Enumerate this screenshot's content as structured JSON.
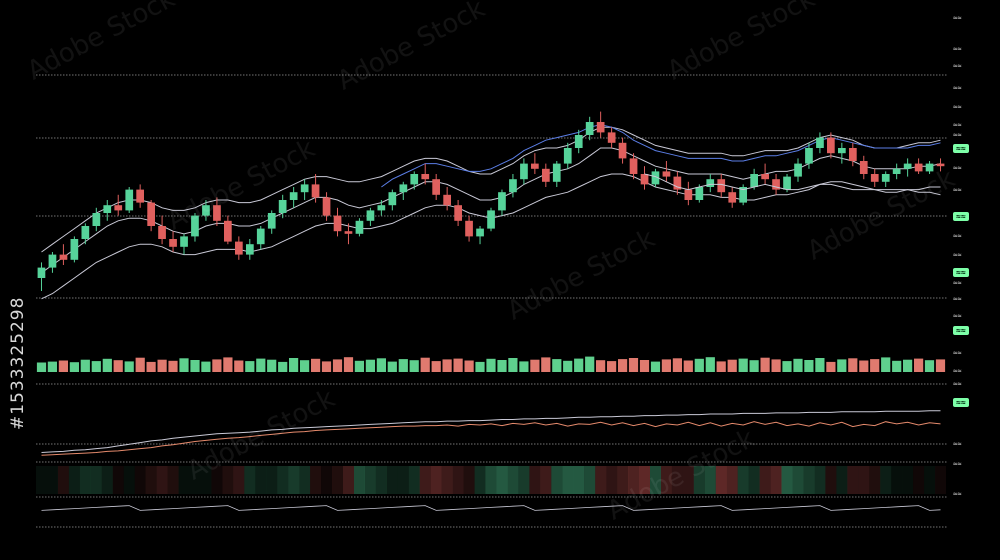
{
  "watermark": {
    "brand": "Adobe Stock",
    "image_id": "#1533325298"
  },
  "price_labels": [
    {
      "text": "≈≈",
      "highlight": false
    },
    {
      "text": "≈≈",
      "highlight": false
    },
    {
      "text": "≈≈",
      "highlight": false
    },
    {
      "text": "≈≈",
      "highlight": false
    },
    {
      "text": "≈≈",
      "highlight": false
    },
    {
      "text": "≈≈",
      "highlight": false
    },
    {
      "text": "≈≈",
      "highlight": false
    },
    {
      "text": "≈≈",
      "highlight": true
    },
    {
      "text": "≈≈",
      "highlight": false
    },
    {
      "text": "≈≈",
      "highlight": false
    },
    {
      "text": "≈≈",
      "highlight": true
    },
    {
      "text": "≈≈",
      "highlight": false
    },
    {
      "text": "≈≈",
      "highlight": false
    },
    {
      "text": "≈≈",
      "highlight": true
    },
    {
      "text": "≈≈",
      "highlight": false
    },
    {
      "text": "≈≈",
      "highlight": false
    },
    {
      "text": "≈≈",
      "highlight": false
    },
    {
      "text": "≈≈",
      "highlight": true
    },
    {
      "text": "≈≈",
      "highlight": false
    },
    {
      "text": "≈≈",
      "highlight": false
    },
    {
      "text": "≈≈",
      "highlight": false
    },
    {
      "text": "≈≈",
      "highlight": true
    },
    {
      "text": "≈≈",
      "highlight": false
    },
    {
      "text": "≈≈",
      "highlight": false
    },
    {
      "text": "≈≈",
      "highlight": false
    }
  ],
  "colors": {
    "up": "#56d39a",
    "down": "#e0605e",
    "line": "#c9c9d6",
    "blue": "#5b7ee6",
    "volume_up": "#5fd08e",
    "volume_down": "#e07a6f"
  },
  "chart_data": {
    "type": "candlestick",
    "title": "",
    "xlabel": "",
    "ylabel": "",
    "ylim": [
      0,
      100
    ],
    "grid": true,
    "candles": [
      [
        20,
        26,
        15,
        24
      ],
      [
        24,
        30,
        22,
        29
      ],
      [
        29,
        33,
        25,
        27
      ],
      [
        27,
        36,
        26,
        35
      ],
      [
        35,
        41,
        33,
        40
      ],
      [
        40,
        47,
        38,
        45
      ],
      [
        45,
        50,
        42,
        48
      ],
      [
        48,
        52,
        44,
        46
      ],
      [
        46,
        55,
        45,
        54
      ],
      [
        54,
        56,
        47,
        49
      ],
      [
        49,
        50,
        38,
        40
      ],
      [
        40,
        44,
        33,
        35
      ],
      [
        35,
        38,
        30,
        32
      ],
      [
        32,
        37,
        29,
        36
      ],
      [
        36,
        45,
        34,
        44
      ],
      [
        44,
        50,
        42,
        48
      ],
      [
        48,
        51,
        40,
        42
      ],
      [
        42,
        44,
        33,
        34
      ],
      [
        34,
        36,
        27,
        29
      ],
      [
        29,
        35,
        27,
        33
      ],
      [
        33,
        40,
        31,
        39
      ],
      [
        39,
        46,
        37,
        45
      ],
      [
        45,
        52,
        43,
        50
      ],
      [
        50,
        55,
        47,
        53
      ],
      [
        53,
        58,
        50,
        56
      ],
      [
        56,
        60,
        49,
        51
      ],
      [
        51,
        53,
        42,
        44
      ],
      [
        44,
        47,
        36,
        38
      ],
      [
        38,
        41,
        33,
        37
      ],
      [
        37,
        43,
        36,
        42
      ],
      [
        42,
        47,
        40,
        46
      ],
      [
        46,
        50,
        44,
        48
      ],
      [
        48,
        54,
        46,
        53
      ],
      [
        53,
        57,
        50,
        56
      ],
      [
        56,
        61,
        54,
        60
      ],
      [
        60,
        64,
        56,
        58
      ],
      [
        58,
        60,
        50,
        52
      ],
      [
        52,
        55,
        46,
        48
      ],
      [
        48,
        50,
        40,
        42
      ],
      [
        42,
        44,
        34,
        36
      ],
      [
        36,
        40,
        33,
        39
      ],
      [
        39,
        47,
        38,
        46
      ],
      [
        46,
        54,
        44,
        53
      ],
      [
        53,
        60,
        51,
        58
      ],
      [
        58,
        66,
        56,
        64
      ],
      [
        64,
        68,
        60,
        62
      ],
      [
        62,
        64,
        55,
        57
      ],
      [
        57,
        65,
        55,
        64
      ],
      [
        64,
        72,
        62,
        70
      ],
      [
        70,
        77,
        68,
        75
      ],
      [
        75,
        82,
        73,
        80
      ],
      [
        80,
        84,
        74,
        76
      ],
      [
        76,
        78,
        70,
        72
      ],
      [
        72,
        74,
        64,
        66
      ],
      [
        66,
        68,
        58,
        60
      ],
      [
        60,
        63,
        54,
        56
      ],
      [
        56,
        62,
        55,
        61
      ],
      [
        61,
        65,
        57,
        59
      ],
      [
        59,
        61,
        52,
        54
      ],
      [
        54,
        57,
        48,
        50
      ],
      [
        50,
        56,
        49,
        55
      ],
      [
        55,
        60,
        53,
        58
      ],
      [
        58,
        60,
        51,
        53
      ],
      [
        53,
        55,
        47,
        49
      ],
      [
        49,
        56,
        48,
        55
      ],
      [
        55,
        62,
        54,
        60
      ],
      [
        60,
        64,
        56,
        58
      ],
      [
        58,
        60,
        52,
        54
      ],
      [
        54,
        60,
        53,
        59
      ],
      [
        59,
        66,
        57,
        64
      ],
      [
        64,
        72,
        62,
        70
      ],
      [
        70,
        76,
        68,
        74
      ],
      [
        74,
        76,
        66,
        68
      ],
      [
        68,
        72,
        64,
        70
      ],
      [
        70,
        72,
        63,
        65
      ],
      [
        65,
        67,
        58,
        60
      ],
      [
        60,
        62,
        55,
        57
      ],
      [
        57,
        61,
        55,
        60
      ],
      [
        60,
        64,
        58,
        62
      ],
      [
        62,
        66,
        59,
        64
      ],
      [
        64,
        66,
        60,
        61
      ],
      [
        61,
        65,
        60,
        64
      ],
      [
        64,
        66,
        61,
        63
      ]
    ],
    "overlay_series": [
      {
        "name": "",
        "color": "line",
        "values": [
          30,
          33,
          36,
          39,
          42,
          45,
          47,
          49,
          50,
          50,
          49,
          47,
          46,
          46,
          47,
          49,
          50,
          50,
          49,
          49,
          50,
          52,
          54,
          56,
          58,
          59,
          59,
          58,
          57,
          57,
          58,
          59,
          61,
          63,
          65,
          66,
          66,
          65,
          63,
          61,
          60,
          60,
          62,
          64,
          67,
          69,
          70,
          70,
          71,
          73,
          76,
          78,
          78,
          77,
          75,
          73,
          71,
          70,
          69,
          68,
          68,
          68,
          68,
          67,
          67,
          68,
          69,
          69,
          69,
          70,
          72,
          74,
          75,
          74,
          73,
          71,
          70,
          70,
          70,
          71,
          72,
          72,
          73
        ]
      },
      {
        "name": "",
        "color": "line",
        "values": [
          22,
          25,
          28,
          31,
          34,
          37,
          40,
          42,
          43,
          43,
          42,
          40,
          38,
          37,
          38,
          40,
          41,
          41,
          40,
          40,
          41,
          43,
          45,
          47,
          49,
          51,
          51,
          50,
          48,
          47,
          48,
          49,
          51,
          53,
          55,
          57,
          57,
          56,
          54,
          52,
          50,
          50,
          51,
          53,
          56,
          58,
          60,
          61,
          62,
          64,
          67,
          70,
          70,
          69,
          67,
          65,
          63,
          62,
          61,
          60,
          60,
          60,
          60,
          59,
          58,
          59,
          60,
          61,
          61,
          62,
          64,
          66,
          67,
          66,
          65,
          63,
          62,
          62,
          62,
          62,
          63,
          63,
          64
        ]
      },
      {
        "name": "",
        "color": "line",
        "values": [
          12,
          14,
          17,
          20,
          23,
          26,
          28,
          30,
          32,
          33,
          33,
          32,
          30,
          29,
          29,
          30,
          31,
          31,
          31,
          30,
          31,
          32,
          34,
          36,
          38,
          40,
          41,
          41,
          40,
          39,
          39,
          40,
          41,
          43,
          45,
          47,
          48,
          48,
          47,
          45,
          44,
          43,
          44,
          45,
          47,
          49,
          51,
          52,
          53,
          55,
          57,
          59,
          60,
          60,
          59,
          57,
          55,
          54,
          53,
          52,
          52,
          52,
          51,
          51,
          50,
          50,
          51,
          52,
          52,
          53,
          54,
          56,
          57,
          57,
          56,
          55,
          54,
          54,
          54,
          54,
          54,
          55,
          55
        ]
      },
      {
        "name": "",
        "color": "blue",
        "values": [
          null,
          null,
          null,
          null,
          null,
          null,
          null,
          null,
          null,
          null,
          null,
          null,
          null,
          null,
          null,
          null,
          null,
          null,
          null,
          null,
          null,
          null,
          null,
          null,
          null,
          null,
          null,
          null,
          null,
          null,
          null,
          55,
          58,
          60,
          62,
          64,
          64,
          63,
          62,
          61,
          61,
          62,
          64,
          66,
          69,
          71,
          73,
          74,
          75,
          76,
          78,
          79,
          78,
          76,
          73,
          71,
          69,
          68,
          67,
          66,
          66,
          66,
          66,
          65,
          65,
          66,
          67,
          67,
          68,
          69,
          71,
          73,
          74,
          73,
          72,
          71,
          70,
          70,
          70,
          70,
          71,
          71,
          72
        ]
      }
    ],
    "lower_line": [
      null,
      null,
      null,
      null,
      null,
      null,
      null,
      null,
      null,
      null,
      null,
      null,
      null,
      null,
      null,
      null,
      null,
      null,
      null,
      null,
      null,
      null,
      null,
      null,
      null,
      null,
      null,
      null,
      null,
      null,
      null,
      null,
      null,
      null,
      null,
      null,
      null,
      null,
      null,
      null,
      null,
      null,
      null,
      null,
      null,
      null,
      null,
      null,
      null,
      null,
      null,
      null,
      null,
      null,
      null,
      60,
      59,
      57,
      55,
      54,
      55,
      56,
      56,
      55,
      54,
      55,
      56,
      55,
      54,
      54,
      55,
      56,
      56,
      55,
      54,
      54,
      54,
      53,
      53,
      54,
      53,
      53,
      52
    ],
    "volume": [
      34,
      37,
      41,
      35,
      44,
      39,
      47,
      42,
      38,
      51,
      36,
      44,
      40,
      49,
      43,
      37,
      45,
      52,
      41,
      39,
      48,
      44,
      36,
      50,
      42,
      47,
      38,
      45,
      53,
      40,
      44,
      49,
      37,
      46,
      42,
      51,
      39,
      45,
      48,
      41,
      36,
      47,
      43,
      50,
      38,
      44,
      52,
      46,
      40,
      48,
      55,
      42,
      39,
      46,
      50,
      43,
      37,
      45,
      49,
      41,
      47,
      53,
      38,
      44,
      48,
      42,
      51,
      45,
      39,
      47,
      43,
      50,
      36,
      45,
      49,
      41,
      46,
      52,
      40,
      44,
      48,
      42,
      45
    ],
    "oscillator_a": [
      10,
      11,
      12,
      14,
      15,
      17,
      19,
      22,
      25,
      28,
      31,
      33,
      36,
      38,
      40,
      42,
      44,
      45,
      46,
      47,
      49,
      51,
      52,
      54,
      55,
      56,
      57,
      58,
      59,
      60,
      61,
      62,
      63,
      64,
      65,
      66,
      66,
      67,
      67,
      68,
      68,
      69,
      70,
      70,
      71,
      71,
      72,
      72,
      73,
      74,
      74,
      75,
      75,
      76,
      76,
      77,
      77,
      78,
      78,
      79,
      79,
      80,
      80,
      80,
      81,
      81,
      81,
      82,
      82,
      82,
      83,
      83,
      83,
      84,
      84,
      84,
      84,
      85,
      85,
      85,
      85,
      86,
      86
    ],
    "oscillator_b": [
      5,
      6,
      7,
      8,
      9,
      10,
      12,
      13,
      15,
      17,
      19,
      22,
      24,
      27,
      30,
      32,
      34,
      36,
      37,
      39,
      41,
      43,
      45,
      47,
      48,
      50,
      51,
      52,
      53,
      54,
      55,
      56,
      57,
      58,
      58,
      59,
      59,
      60,
      58,
      61,
      60,
      62,
      59,
      63,
      61,
      64,
      60,
      63,
      58,
      62,
      61,
      65,
      60,
      64,
      59,
      63,
      57,
      62,
      60,
      65,
      59,
      64,
      58,
      63,
      60,
      66,
      61,
      65,
      59,
      62,
      58,
      64,
      60,
      65,
      57,
      61,
      59,
      66,
      62,
      65,
      60,
      64,
      62
    ],
    "heat_strip": [
      1,
      1,
      2,
      2,
      3,
      3,
      2,
      1,
      1,
      1,
      2,
      3,
      2,
      1,
      1,
      1,
      1,
      2,
      3,
      3,
      2,
      2,
      3,
      4,
      3,
      2,
      1,
      2,
      4,
      5,
      4,
      3,
      2,
      2,
      3,
      4,
      5,
      4,
      3,
      2,
      3,
      5,
      6,
      5,
      4,
      3,
      4,
      5,
      6,
      6,
      5,
      4,
      3,
      4,
      5,
      6,
      5,
      4,
      3,
      3,
      4,
      5,
      6,
      5,
      4,
      3,
      4,
      5,
      6,
      5,
      4,
      3,
      2,
      2,
      3,
      3,
      2,
      2,
      1,
      1,
      1,
      1,
      1
    ]
  }
}
